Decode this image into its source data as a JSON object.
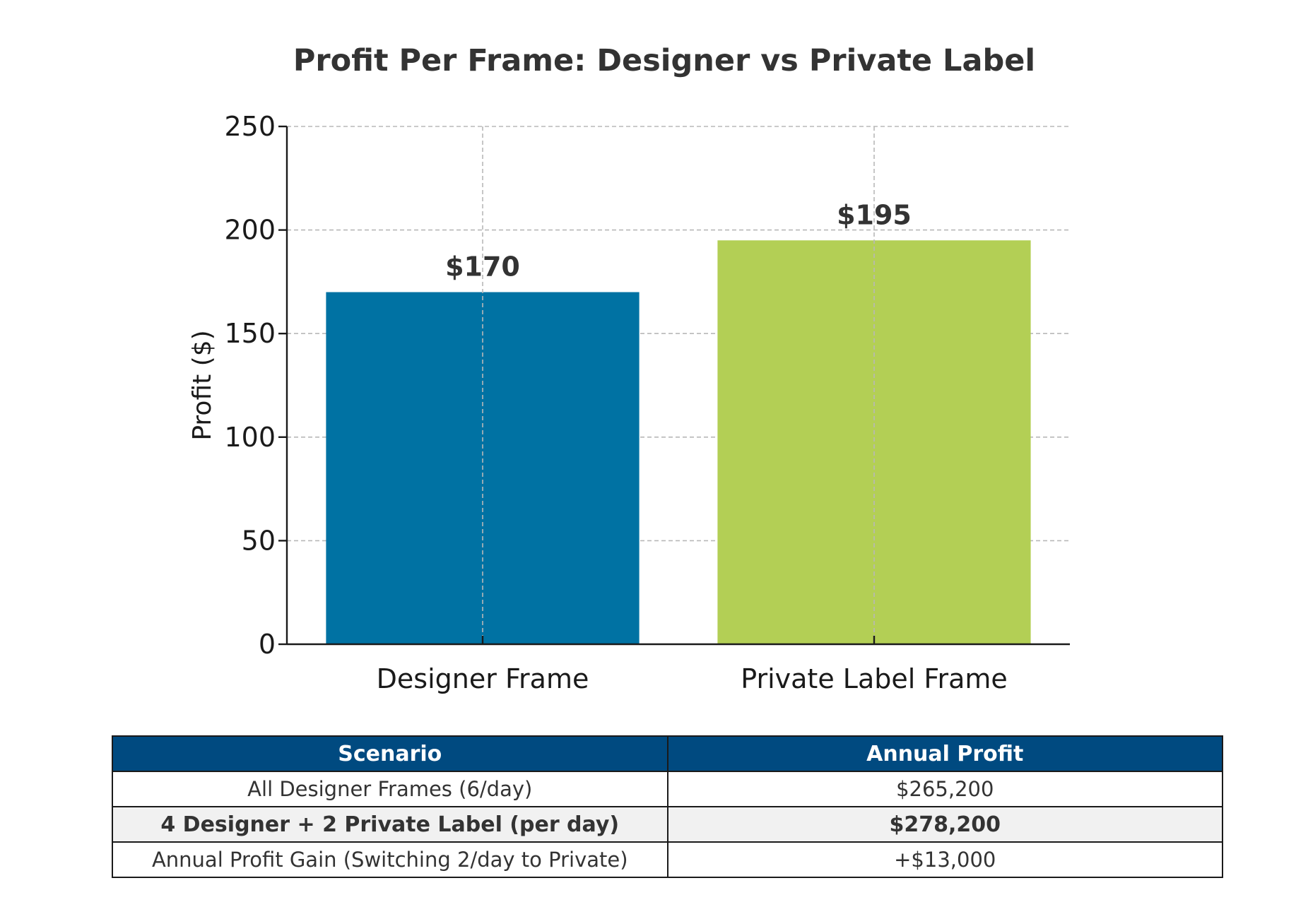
{
  "chart_data": {
    "type": "bar",
    "title": "Profit Per Frame: Designer vs Private Label",
    "xlabel": "",
    "ylabel": "Profit ($)",
    "categories": [
      "Designer Frame",
      "Private Label Frame"
    ],
    "values": [
      170,
      195
    ],
    "value_labels": [
      "$170",
      "$195"
    ],
    "colors": [
      "#0072a3",
      "#b3cf55"
    ],
    "ylim": [
      0,
      250
    ],
    "yticks": [
      0,
      50,
      100,
      150,
      200,
      250
    ],
    "grid": true
  },
  "table": {
    "headers": [
      "Scenario",
      "Annual Profit"
    ],
    "rows": [
      {
        "scenario": "All Designer Frames (6/day)",
        "profit": "$265,200",
        "bold": false
      },
      {
        "scenario": "4 Designer + 2 Private Label (per day)",
        "profit": "$278,200",
        "bold": true
      },
      {
        "scenario": "Annual Profit Gain (Switching 2/day to Private)",
        "profit": "+$13,000",
        "bold": false
      }
    ],
    "header_color": "#004a80"
  }
}
